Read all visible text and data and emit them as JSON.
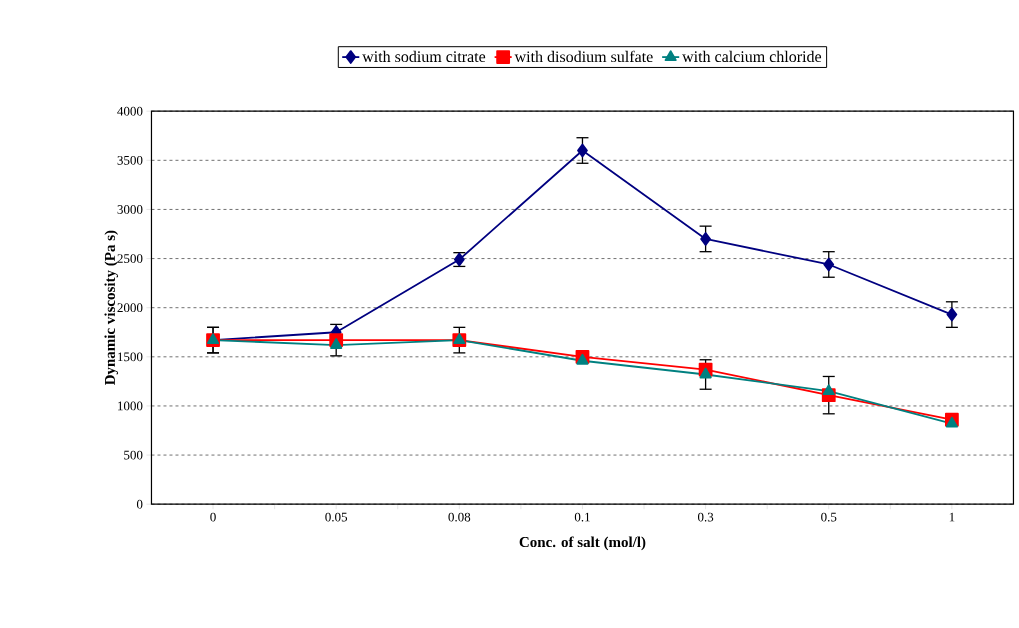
{
  "chart_data": {
    "type": "line",
    "xlabel": "Conc. of salt (mol/l)",
    "ylabel": "Dynamic viscosity (Pa s)",
    "categories": [
      "0",
      "0.05",
      "0.08",
      "0.1",
      "0.3",
      "0.5",
      "1"
    ],
    "series": [
      {
        "name": "with sodium citrate",
        "color": "#000080",
        "marker": "diamond",
        "values": [
          1670,
          1750,
          2490,
          3600,
          2700,
          2440,
          1930
        ],
        "errors": [
          130,
          null,
          70,
          130,
          130,
          130,
          130
        ]
      },
      {
        "name": "with disodium sulfate",
        "color": "#ff0000",
        "marker": "square",
        "values": [
          1670,
          1670,
          1670,
          1500,
          1370,
          1110,
          860
        ],
        "errors": [
          130,
          160,
          130,
          null,
          null,
          190,
          null
        ]
      },
      {
        "name": "with calcium chloride",
        "color": "#008080",
        "marker": "triangle",
        "values": [
          1670,
          1620,
          1670,
          1460,
          1320,
          1150,
          820
        ],
        "errors": [
          null,
          null,
          null,
          null,
          150,
          null,
          null
        ]
      }
    ],
    "ylim": [
      0,
      4000
    ],
    "yticks": [
      0,
      500,
      1000,
      1500,
      2000,
      2500,
      3000,
      3500,
      4000
    ],
    "grid": "y",
    "legend": "top",
    "line_style": "solid"
  }
}
